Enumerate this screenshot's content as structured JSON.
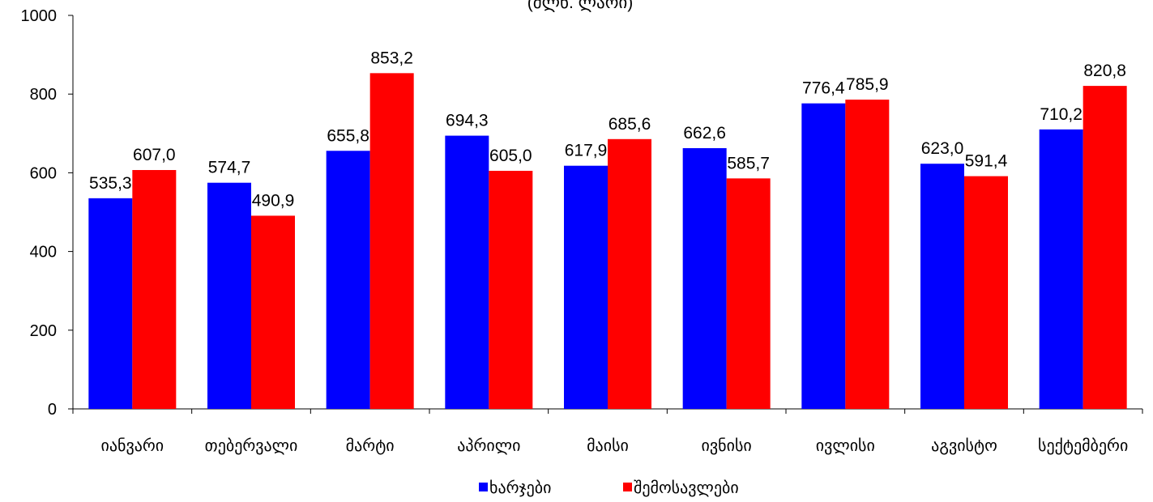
{
  "chart_data": {
    "type": "bar",
    "title": "(მლნ. ლარი)",
    "categories": [
      "იანვარი",
      "თებერვალი",
      "მარტი",
      "აპრილი",
      "მაისი",
      "ივნისი",
      "ივლისი",
      "აგვისტო",
      "სექტემბერი"
    ],
    "series": [
      {
        "name": "ხარჯები",
        "color": "#0000ff",
        "values": [
          535.3,
          574.7,
          655.8,
          694.3,
          617.9,
          662.6,
          776.4,
          623.0,
          710.2
        ],
        "labels": [
          "535,3",
          "574,7",
          "655,8",
          "694,3",
          "617,9",
          "662,6",
          "776,4",
          "623,0",
          "710,2"
        ]
      },
      {
        "name": "შემოსავლები",
        "color": "#ff0000",
        "values": [
          607.0,
          490.9,
          853.2,
          605.0,
          685.6,
          585.7,
          785.9,
          591.4,
          820.8
        ],
        "labels": [
          "607,0",
          "490,9",
          "853,2",
          "605,0",
          "685,6",
          "585,7",
          "785,9",
          "591,4",
          "820,8"
        ]
      }
    ],
    "ylim": [
      0,
      1000
    ],
    "yticks": [
      0,
      200,
      400,
      600,
      800,
      1000
    ],
    "grid": false,
    "legend_position": "bottom"
  }
}
